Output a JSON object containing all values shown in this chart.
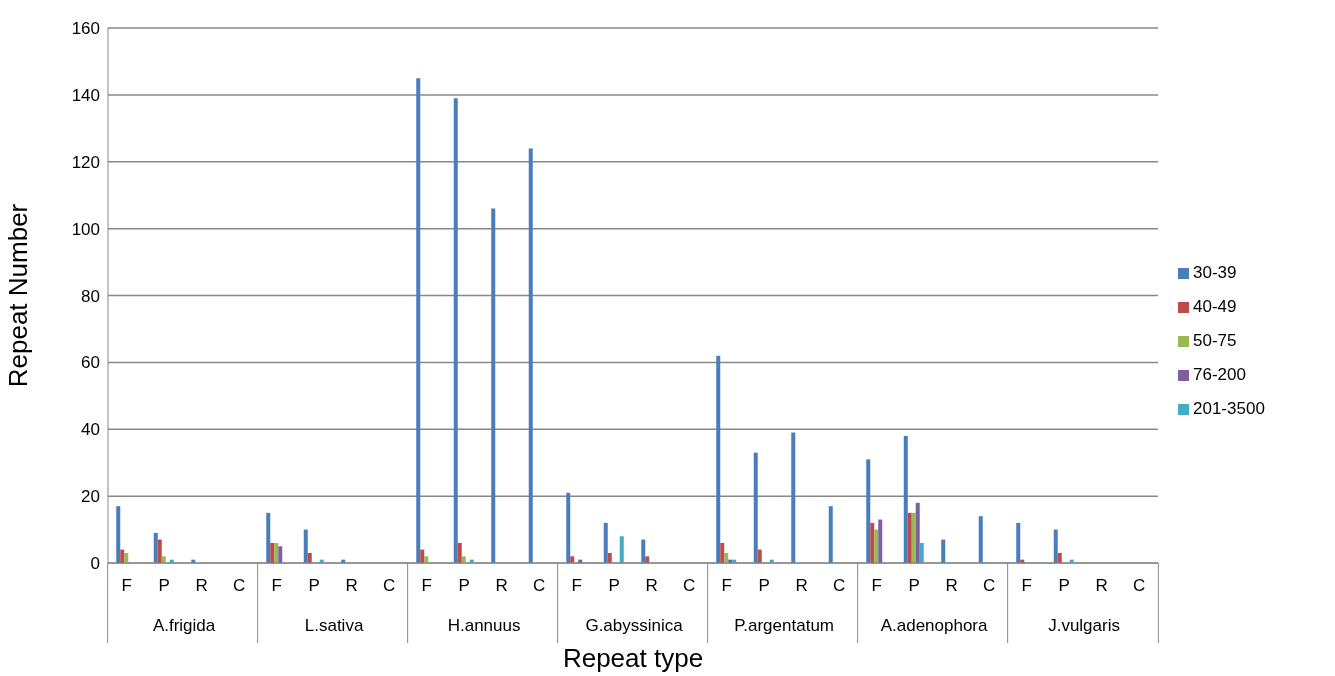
{
  "chart_data": {
    "type": "bar",
    "xlabel": "Repeat type",
    "ylabel": "Repeat Number",
    "categories": [
      "F",
      "P",
      "R",
      "C",
      "F",
      "P",
      "R",
      "C",
      "F",
      "P",
      "R",
      "C",
      "F",
      "P",
      "R",
      "C",
      "F",
      "P",
      "R",
      "C",
      "F",
      "P",
      "R",
      "C",
      "F",
      "P",
      "R",
      "C"
    ],
    "annotations": [
      "A.frigida",
      "L.sativa",
      "H.annuus",
      "G.abyssinica",
      "P.argentatum",
      "A.adenophora",
      "J.vulgaris"
    ],
    "series": [
      {
        "name": "30-39",
        "color": "#4a7ebb",
        "values": [
          17,
          9,
          1,
          0,
          15,
          10,
          1,
          0,
          145,
          139,
          106,
          124,
          21,
          12,
          7,
          0,
          62,
          33,
          39,
          17,
          31,
          38,
          7,
          14,
          12,
          10,
          0,
          0
        ]
      },
      {
        "name": "40-49",
        "color": "#be4b48",
        "values": [
          4,
          7,
          0,
          0,
          6,
          3,
          0,
          0,
          4,
          6,
          0,
          0,
          2,
          3,
          2,
          0,
          6,
          4,
          0,
          0,
          12,
          15,
          0,
          0,
          1,
          3,
          0,
          0
        ]
      },
      {
        "name": "50-75",
        "color": "#98b954",
        "values": [
          3,
          2,
          0,
          0,
          6,
          0,
          0,
          0,
          2,
          2,
          0,
          0,
          0,
          0,
          0,
          0,
          3,
          0,
          0,
          0,
          10,
          15,
          0,
          0,
          0,
          0,
          0,
          0
        ]
      },
      {
        "name": "76-200",
        "color": "#7d60a0",
        "values": [
          0,
          0,
          0,
          0,
          5,
          0,
          0,
          0,
          0,
          0,
          0,
          0,
          1,
          0,
          0,
          0,
          1,
          0,
          0,
          0,
          13,
          18,
          0,
          0,
          0,
          0,
          0,
          0
        ]
      },
      {
        "name": "201-3500",
        "color": "#46aac5",
        "values": [
          0,
          1,
          0,
          0,
          0,
          1,
          0,
          0,
          0,
          1,
          0,
          0,
          0,
          8,
          0,
          0,
          1,
          1,
          0,
          0,
          0,
          6,
          0,
          0,
          0,
          1,
          0,
          0
        ]
      }
    ],
    "ylim": [
      0,
      160
    ],
    "yticks": [
      0,
      20,
      40,
      60,
      80,
      100,
      120,
      140,
      160
    ],
    "grid": "y",
    "legend": "right"
  }
}
